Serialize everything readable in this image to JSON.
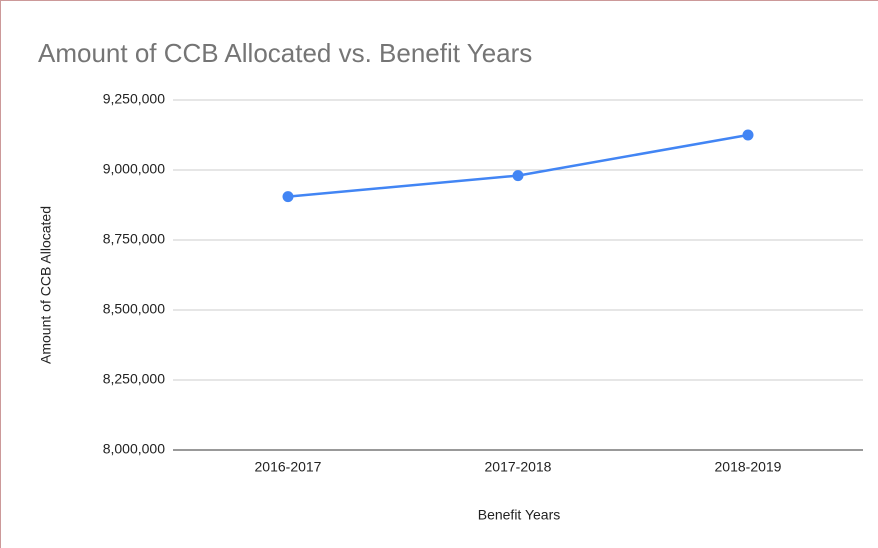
{
  "chart_data": {
    "type": "line",
    "title": "Amount of CCB Allocated vs. Benefit Years",
    "x_label": "Benefit Years",
    "y_label": "Amount of CCB Allocated",
    "categories": [
      "2016-2017",
      "2017-2018",
      "2018-2019"
    ],
    "series": [
      {
        "name": "Amount of CCB Allocated",
        "color": "#4285f4",
        "values": [
          8905000,
          8980000,
          9125000
        ]
      }
    ],
    "ylim": [
      8000000,
      9250000
    ],
    "yticks": [
      {
        "value": 8000000,
        "label": "8,000,000"
      },
      {
        "value": 8250000,
        "label": "8,250,000"
      },
      {
        "value": 8500000,
        "label": "8,500,000"
      },
      {
        "value": 8750000,
        "label": "8,750,000"
      },
      {
        "value": 9000000,
        "label": "9,000,000"
      },
      {
        "value": 9250000,
        "label": "9,250,000"
      }
    ],
    "grid": true
  }
}
